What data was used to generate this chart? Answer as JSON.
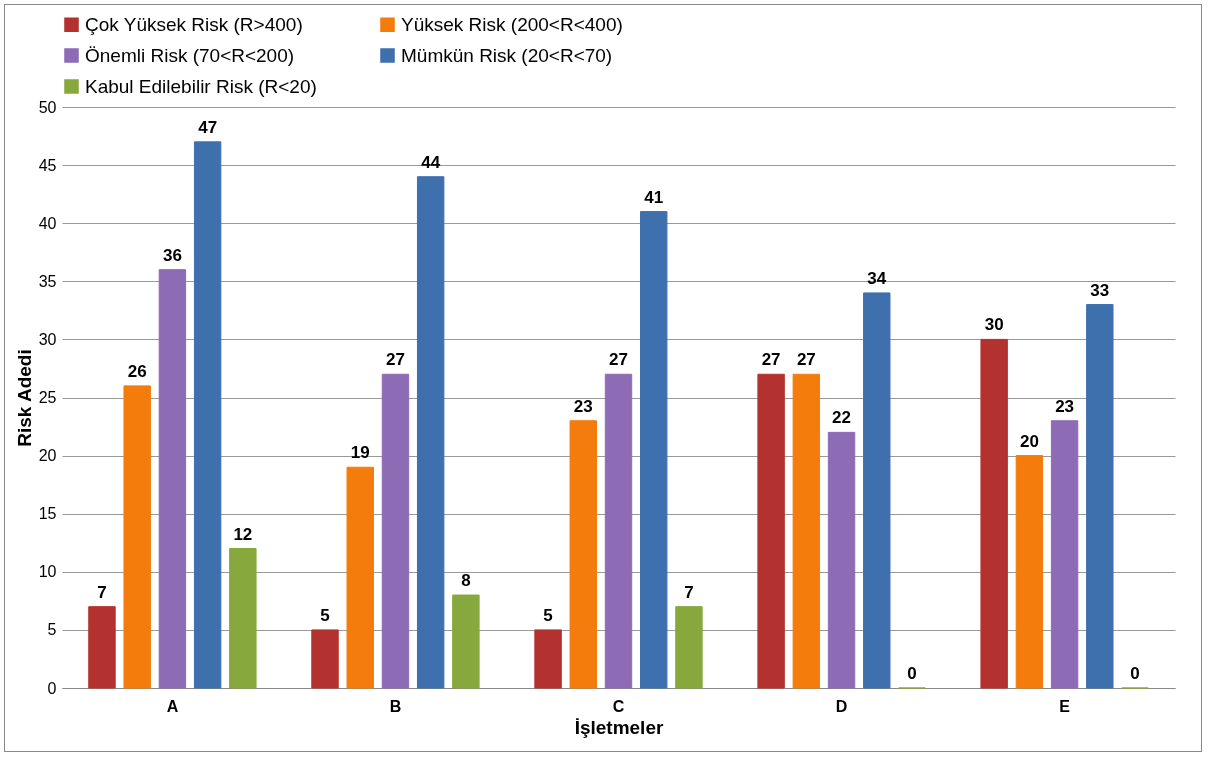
{
  "chart_data": {
    "type": "bar",
    "xlabel": "İşletmeler",
    "ylabel": "Risk Adedi",
    "categories": [
      "A",
      "B",
      "C",
      "D",
      "E"
    ],
    "series": [
      {
        "name": "Çok Yüksek Risk (R>400)",
        "color": "#b3322f",
        "values": [
          7,
          5,
          5,
          27,
          30
        ]
      },
      {
        "name": "Yüksek Risk (200<R<400)",
        "color": "#f47c0c",
        "values": [
          26,
          19,
          23,
          27,
          20
        ]
      },
      {
        "name": "Önemli Risk (70<R<200)",
        "color": "#8e6bb5",
        "values": [
          36,
          27,
          27,
          22,
          23
        ]
      },
      {
        "name": "Mümkün Risk (20<R<70)",
        "color": "#3e70ae",
        "values": [
          47,
          44,
          41,
          34,
          33
        ]
      },
      {
        "name": "Kabul Edilebilir Risk (R<20)",
        "color": "#86a83d",
        "values": [
          12,
          8,
          7,
          0,
          0
        ]
      }
    ],
    "ylim": [
      0,
      50
    ],
    "yticks": [
      0,
      5,
      10,
      15,
      20,
      25,
      30,
      35,
      40,
      45,
      50
    ],
    "grid": "y",
    "legend": "top",
    "data_labels": true
  }
}
